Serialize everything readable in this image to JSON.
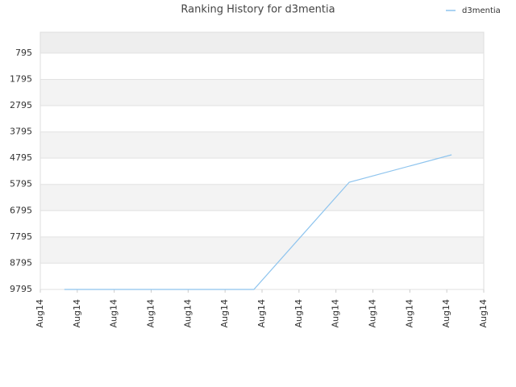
{
  "chart_data": {
    "type": "line",
    "title": "Ranking History for d3mentia",
    "x": [
      0.65,
      5.78,
      8.36,
      11.13
    ],
    "series": [
      {
        "name": "d3mentia",
        "color": "#8ec4ee",
        "values": [
          9795,
          9795,
          5711,
          4667
        ]
      }
    ],
    "xlim": [
      0,
      12
    ],
    "xticks": [
      {
        "value": 0,
        "label": "Aug14"
      },
      {
        "value": 1,
        "label": "Aug14"
      },
      {
        "value": 2,
        "label": "Aug14"
      },
      {
        "value": 3,
        "label": "Aug14"
      },
      {
        "value": 4,
        "label": "Aug14"
      },
      {
        "value": 5,
        "label": "Aug14"
      },
      {
        "value": 6,
        "label": "Aug14"
      },
      {
        "value": 7,
        "label": "Aug14"
      },
      {
        "value": 8,
        "label": "Aug14"
      },
      {
        "value": 9,
        "label": "Aug14"
      },
      {
        "value": 10,
        "label": "Aug14"
      },
      {
        "value": 11,
        "label": "Aug14"
      },
      {
        "value": 12,
        "label": "Aug14"
      }
    ],
    "ylim": [
      9795,
      0
    ],
    "yticks": [
      795,
      1795,
      2795,
      3795,
      4795,
      5795,
      6795,
      7795,
      8795,
      9795
    ],
    "grid": true,
    "legend": "top-right"
  }
}
